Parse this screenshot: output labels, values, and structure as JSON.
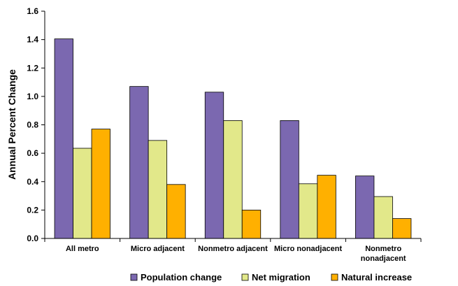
{
  "chart_data": {
    "type": "bar",
    "title": "",
    "xlabel": "",
    "ylabel": "Annual Percent Change",
    "ylim": [
      0,
      1.6
    ],
    "yticks": [
      "0.0",
      "0.2",
      "0.4",
      "0.6",
      "0.8",
      "1.0",
      "1.2",
      "1.4",
      "1.6"
    ],
    "categories": [
      [
        "All metro"
      ],
      [
        "Micro adjacent"
      ],
      [
        "Nonmetro adjacent"
      ],
      [
        "Micro nonadjacent"
      ],
      [
        "Nonmetro",
        "nonadjacent"
      ]
    ],
    "series": [
      {
        "name": "Population change",
        "color": "#7b68b0",
        "values": [
          1.405,
          1.07,
          1.03,
          0.83,
          0.44
        ]
      },
      {
        "name": "Net migration",
        "color": "#e2e88a",
        "values": [
          0.635,
          0.69,
          0.83,
          0.385,
          0.295
        ]
      },
      {
        "name": "Natural increase",
        "color": "#ffb000",
        "values": [
          0.77,
          0.38,
          0.2,
          0.445,
          0.14
        ]
      }
    ],
    "grid": false,
    "legend": "bottom"
  }
}
